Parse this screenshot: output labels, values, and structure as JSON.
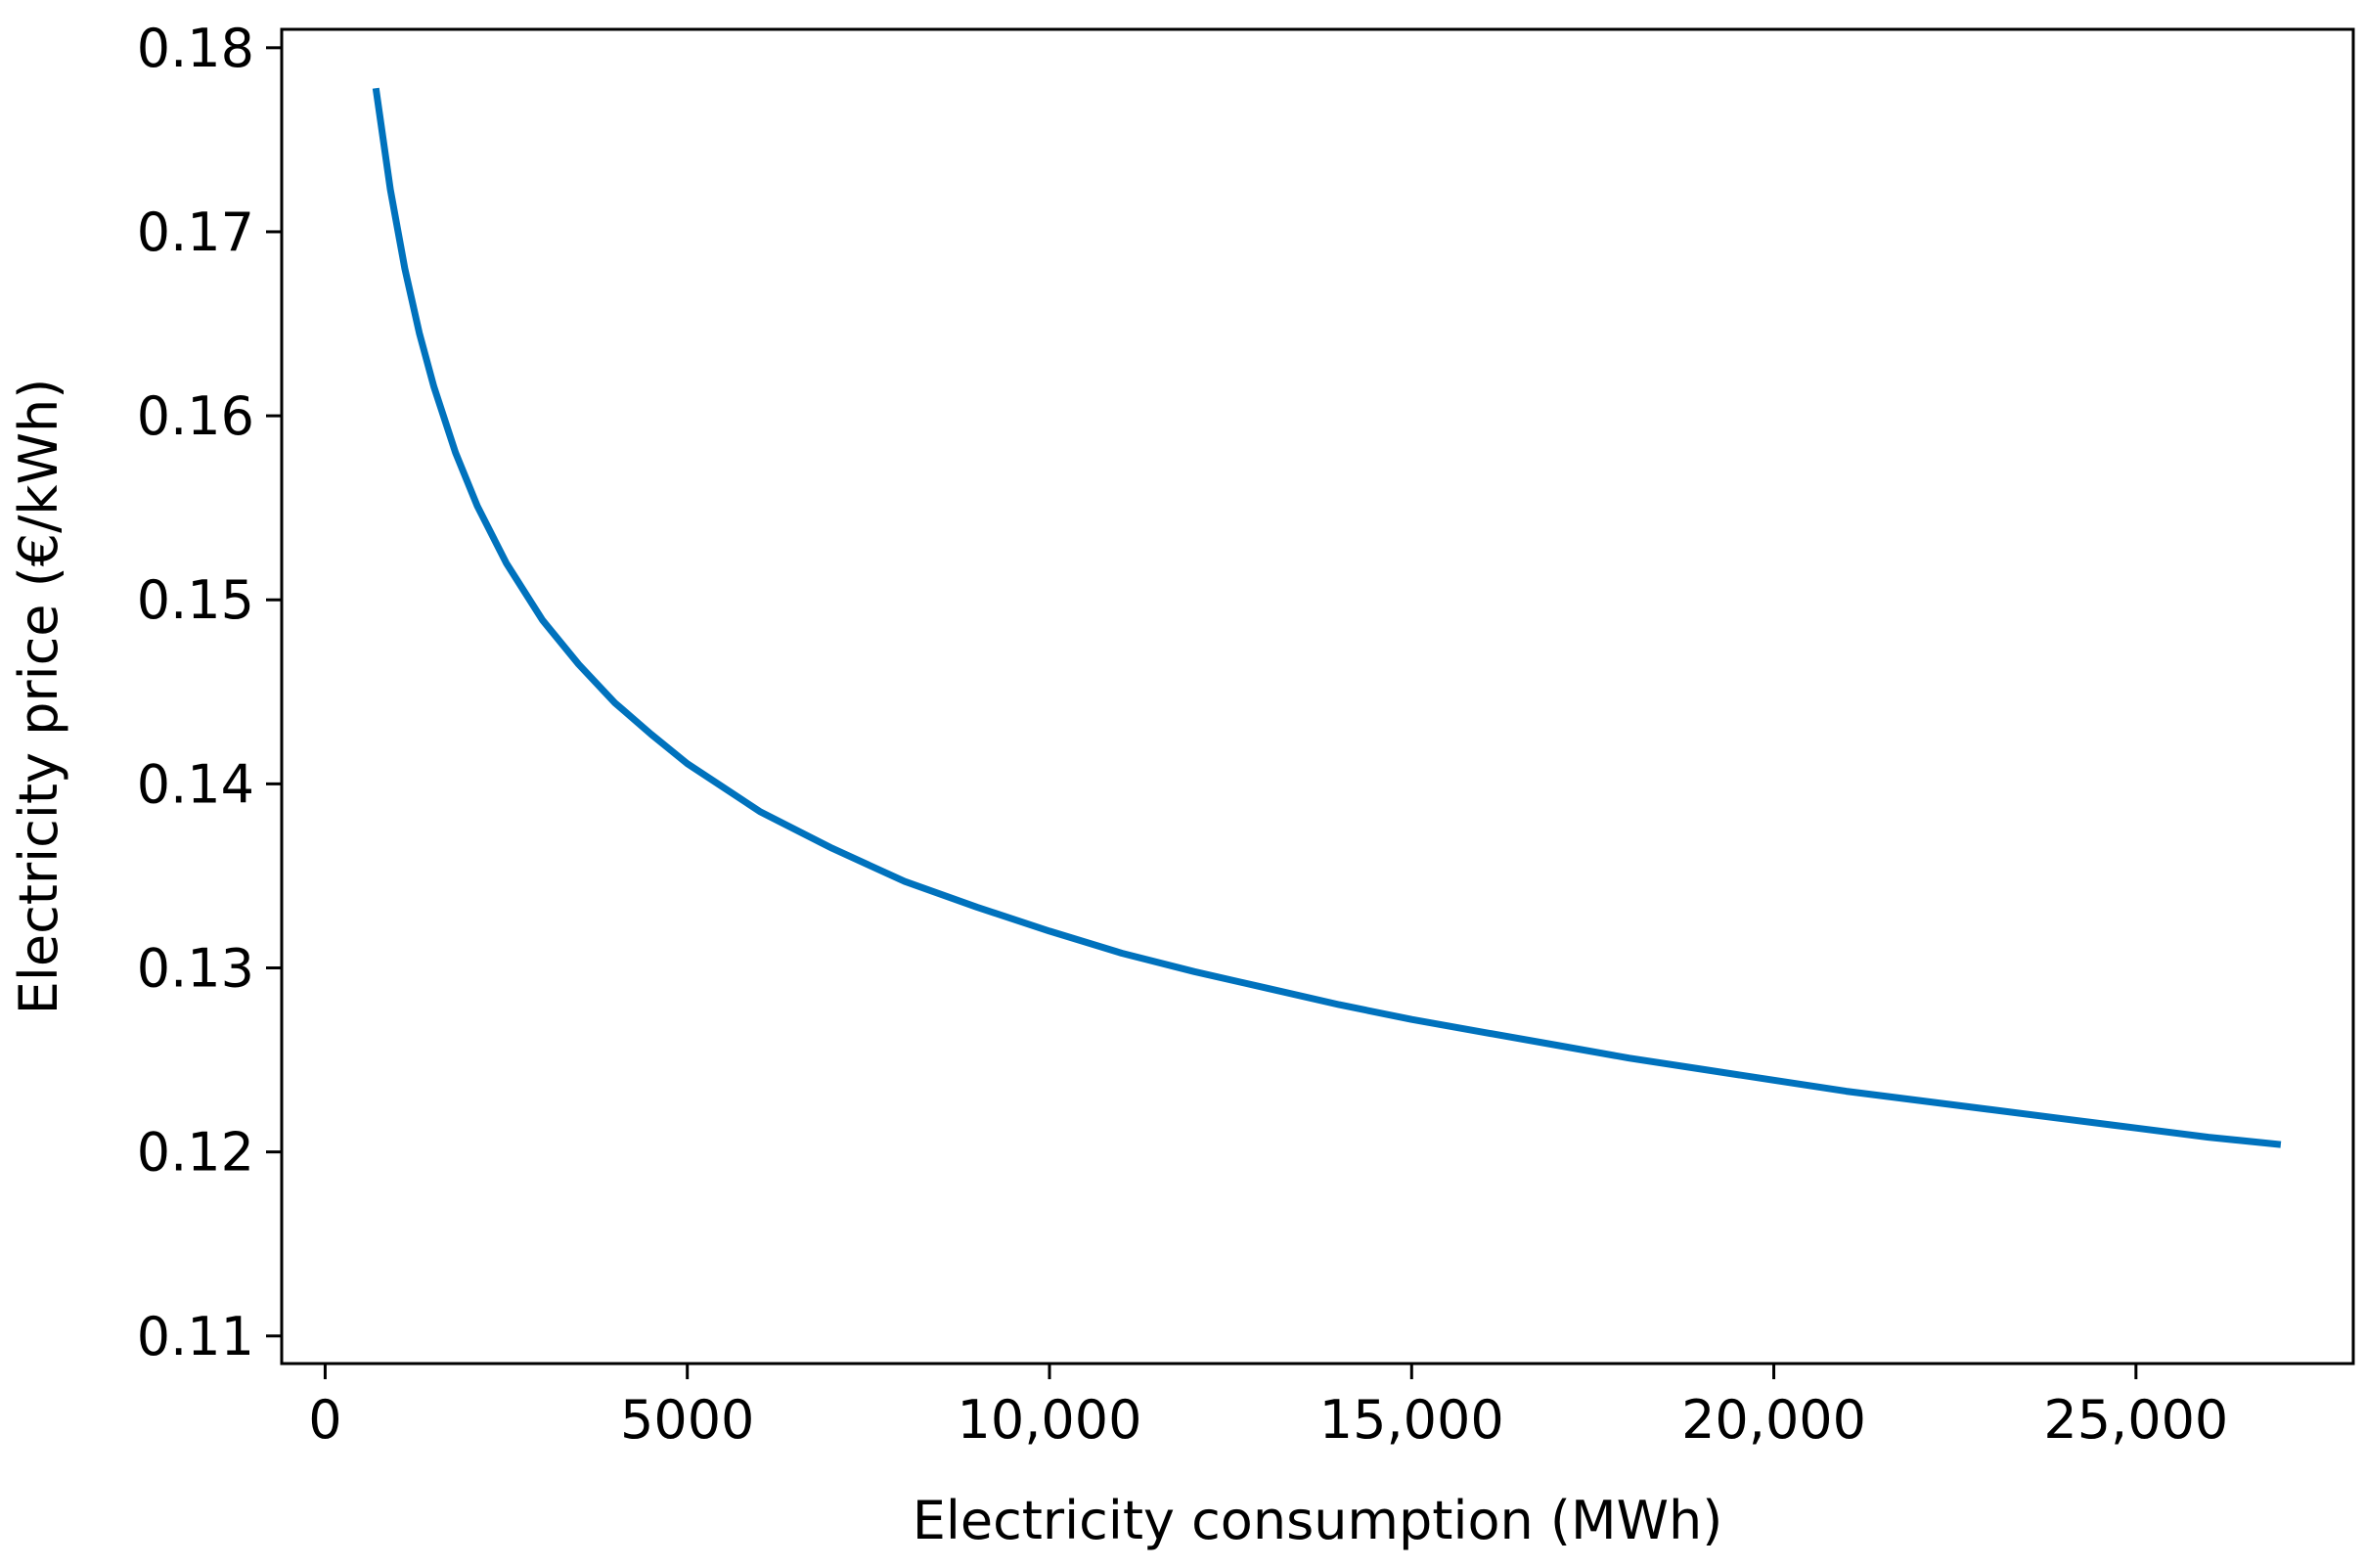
{
  "chart_data": {
    "type": "line",
    "title": "",
    "xlabel": "Electricity consumption (MWh)",
    "ylabel": "Electricity price (€/kWh)",
    "xlim": [
      -600,
      28000
    ],
    "ylim": [
      0.1085,
      0.181
    ],
    "x_ticks": [
      {
        "value": 0,
        "label": "0"
      },
      {
        "value": 5000,
        "label": "5000"
      },
      {
        "value": 10000,
        "label": "10,000"
      },
      {
        "value": 15000,
        "label": "15,000"
      },
      {
        "value": 20000,
        "label": "20,000"
      },
      {
        "value": 25000,
        "label": "25,000"
      }
    ],
    "y_ticks": [
      {
        "value": 0.11,
        "label": "0.11"
      },
      {
        "value": 0.12,
        "label": "0.12"
      },
      {
        "value": 0.13,
        "label": "0.13"
      },
      {
        "value": 0.14,
        "label": "0.14"
      },
      {
        "value": 0.15,
        "label": "0.15"
      },
      {
        "value": 0.16,
        "label": "0.16"
      },
      {
        "value": 0.17,
        "label": "0.17"
      },
      {
        "value": 0.18,
        "label": "0.18"
      }
    ],
    "grid": false,
    "series": [
      {
        "color": "#0072BD",
        "x": [
          700,
          900,
          1100,
          1300,
          1500,
          1800,
          2100,
          2500,
          3000,
          3500,
          4000,
          4500,
          5000,
          5500,
          6000,
          7000,
          8000,
          9000,
          10000,
          11000,
          12000,
          13000,
          14000,
          15000,
          16000,
          17000,
          18000,
          19000,
          20000,
          21000,
          22000,
          23000,
          24000,
          25000,
          26000,
          27000
        ],
        "y": [
          0.1778,
          0.1723,
          0.168,
          0.1645,
          0.1616,
          0.158,
          0.1551,
          0.152,
          0.1489,
          0.1465,
          0.1444,
          0.1427,
          0.1411,
          0.1398,
          0.1385,
          0.1365,
          0.1347,
          0.1333,
          0.132,
          0.1308,
          0.1298,
          0.1289,
          0.128,
          0.1272,
          0.1265,
          0.1258,
          0.1251,
          0.1245,
          0.1239,
          0.1233,
          0.1228,
          0.1223,
          0.1218,
          0.1213,
          0.1208,
          0.1204
        ]
      }
    ]
  }
}
